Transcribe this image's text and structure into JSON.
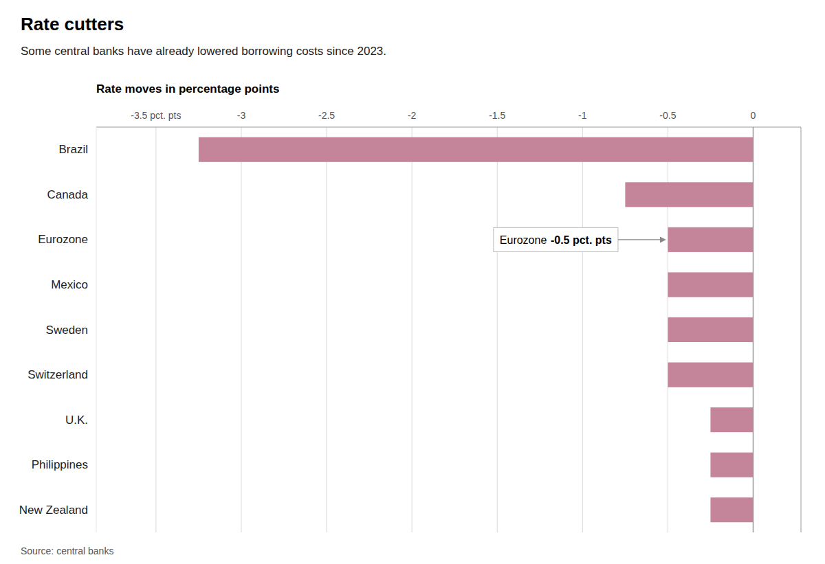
{
  "chart_data": {
    "type": "bar",
    "orientation": "horizontal",
    "title": "Rate cutters",
    "subtitle": "Some central banks have already lowered borrowing costs since 2023.",
    "x_label": "Rate moves in percentage points",
    "source": "Source: central banks",
    "categories": [
      "Brazil",
      "Canada",
      "Eurozone",
      "Mexico",
      "Sweden",
      "Switzerland",
      "U.K.",
      "Philippines",
      "New Zealand"
    ],
    "values": [
      -3.25,
      -0.75,
      -0.5,
      -0.5,
      -0.5,
      -0.5,
      -0.25,
      -0.25,
      -0.25
    ],
    "color": "#c4849a",
    "xlim": [
      -3.85,
      0.28
    ],
    "xticks": [
      {
        "value": -3.5,
        "label": "-3.5 pct. pts"
      },
      -3,
      -2.5,
      -2,
      -1.5,
      -1,
      -0.5,
      0
    ],
    "grid": true,
    "annotations": [
      {
        "text": "Eurozone",
        "emphasis": "-0.5 pct. pts",
        "category": "Eurozone",
        "x": -0.51
      }
    ]
  }
}
